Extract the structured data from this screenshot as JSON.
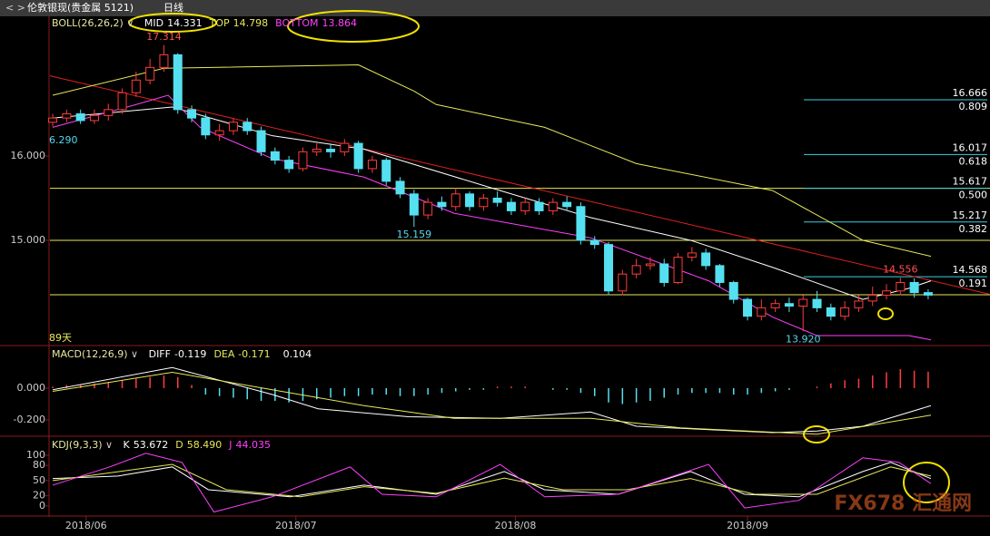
{
  "header": {
    "title": "伦敦银现(贵金属 5121)",
    "period": "日线"
  },
  "watermark": "FX678 汇通网",
  "chart_data": [
    {
      "type": "candlestick",
      "indicator": "BOLL(26,26,2)",
      "xlim": [
        -0.2,
        67.45
      ],
      "ylim": [
        13.763,
        17.656
      ],
      "yticks": [
        {
          "value": 16,
          "label": "16.000"
        },
        {
          "value": 15,
          "label": "15.000"
        }
      ],
      "readouts": [
        {
          "name": "MID",
          "value": 14.331,
          "color": "#ffffff",
          "x": [
            0,
            8.6,
            15.8,
            22.4,
            32.2,
            38.7,
            45.9,
            51.8,
            58.3,
            61.6,
            63.2
          ],
          "values": [
            16.45,
            16.58,
            16.24,
            16.08,
            15.59,
            15.27,
            15.0,
            14.68,
            14.3,
            14.43,
            14.52
          ]
        },
        {
          "name": "TOP",
          "value": 14.798,
          "color": "#e8e85a",
          "x": [
            0,
            8,
            22,
            26,
            27.6,
            35.4,
            42,
            51.8,
            58.3,
            63.2
          ],
          "values": [
            16.72,
            17.04,
            17.08,
            16.77,
            16.61,
            16.34,
            15.91,
            15.59,
            15.0,
            14.81
          ]
        },
        {
          "name": "BOTTOM",
          "value": 13.864,
          "color": "#ff40ff",
          "x": [
            0,
            6,
            8.3,
            10.6,
            15.8,
            22.4,
            28.9,
            38.7,
            47.2,
            51.8,
            55,
            61.6,
            63.2
          ],
          "values": [
            16.34,
            16.61,
            16.72,
            16.34,
            15.97,
            15.75,
            15.32,
            15.03,
            14.52,
            14.09,
            13.87,
            13.87,
            13.82
          ]
        }
      ],
      "candles": [
        [
          16.4,
          16.45,
          16.5,
          16.35
        ],
        [
          16.45,
          16.5,
          16.55,
          16.4
        ],
        [
          16.5,
          16.42,
          16.55,
          16.38
        ],
        [
          16.42,
          16.48,
          16.55,
          16.38
        ],
        [
          16.48,
          16.55,
          16.62,
          16.42
        ],
        [
          16.55,
          16.75,
          16.8,
          16.5
        ],
        [
          16.75,
          16.9,
          17.0,
          16.7
        ],
        [
          16.9,
          17.05,
          17.15,
          16.85
        ],
        [
          17.05,
          17.2,
          17.314,
          17.0
        ],
        [
          17.2,
          16.55,
          17.22,
          16.5
        ],
        [
          16.55,
          16.45,
          16.6,
          16.4
        ],
        [
          16.45,
          16.25,
          16.5,
          16.2
        ],
        [
          16.25,
          16.3,
          16.38,
          16.18
        ],
        [
          16.3,
          16.4,
          16.45,
          16.25
        ],
        [
          16.4,
          16.3,
          16.45,
          16.25
        ],
        [
          16.3,
          16.05,
          16.35,
          16.0
        ],
        [
          16.05,
          15.95,
          16.1,
          15.9
        ],
        [
          15.95,
          15.85,
          16.0,
          15.8
        ],
        [
          15.85,
          16.05,
          16.1,
          15.82
        ],
        [
          16.05,
          16.08,
          16.15,
          16.0
        ],
        [
          16.08,
          16.05,
          16.15,
          15.98
        ],
        [
          16.05,
          16.15,
          16.2,
          16.0
        ],
        [
          16.15,
          15.85,
          16.18,
          15.8
        ],
        [
          15.85,
          15.95,
          16.0,
          15.8
        ],
        [
          15.95,
          15.7,
          15.98,
          15.65
        ],
        [
          15.7,
          15.55,
          15.75,
          15.5
        ],
        [
          15.55,
          15.3,
          15.6,
          15.159
        ],
        [
          15.3,
          15.45,
          15.5,
          15.25
        ],
        [
          15.45,
          15.4,
          15.52,
          15.35
        ],
        [
          15.4,
          15.55,
          15.62,
          15.35
        ],
        [
          15.55,
          15.4,
          15.58,
          15.35
        ],
        [
          15.4,
          15.5,
          15.55,
          15.35
        ],
        [
          15.5,
          15.45,
          15.58,
          15.4
        ],
        [
          15.45,
          15.35,
          15.5,
          15.3
        ],
        [
          15.35,
          15.45,
          15.5,
          15.3
        ],
        [
          15.45,
          15.35,
          15.5,
          15.3
        ],
        [
          15.35,
          15.45,
          15.5,
          15.3
        ],
        [
          15.45,
          15.4,
          15.52,
          15.35
        ],
        [
          15.4,
          15.0,
          15.45,
          14.95
        ],
        [
          15.0,
          14.95,
          15.05,
          14.9
        ],
        [
          14.95,
          14.4,
          14.98,
          14.35
        ],
        [
          14.4,
          14.6,
          14.65,
          14.35
        ],
        [
          14.6,
          14.7,
          14.78,
          14.55
        ],
        [
          14.7,
          14.72,
          14.8,
          14.65
        ],
        [
          14.72,
          14.5,
          14.78,
          14.45
        ],
        [
          14.5,
          14.8,
          14.85,
          14.48
        ],
        [
          14.8,
          14.85,
          14.92,
          14.75
        ],
        [
          14.85,
          14.7,
          14.9,
          14.65
        ],
        [
          14.7,
          14.5,
          14.72,
          14.45
        ],
        [
          14.5,
          14.3,
          14.52,
          14.25
        ],
        [
          14.3,
          14.1,
          14.32,
          14.05
        ],
        [
          14.1,
          14.2,
          14.3,
          14.05
        ],
        [
          14.2,
          14.25,
          14.3,
          14.15
        ],
        [
          14.25,
          14.22,
          14.32,
          14.15
        ],
        [
          14.22,
          14.3,
          14.35,
          13.92
        ],
        [
          14.3,
          14.2,
          14.4,
          14.15
        ],
        [
          14.2,
          14.1,
          14.25,
          14.05
        ],
        [
          14.1,
          14.2,
          14.28,
          14.05
        ],
        [
          14.2,
          14.28,
          14.35,
          14.15
        ],
        [
          14.28,
          14.35,
          14.45,
          14.22
        ],
        [
          14.35,
          14.4,
          14.48,
          14.3
        ],
        [
          14.4,
          14.5,
          14.556,
          14.35
        ],
        [
          14.5,
          14.38,
          14.55,
          14.32
        ],
        [
          14.38,
          14.35,
          14.42,
          14.3
        ]
      ],
      "trendline": {
        "color": "#e02020",
        "x": [
          -0.2,
          67.45
        ],
        "values": [
          16.95,
          14.36
        ]
      },
      "hlines": {
        "color": "#e8e85a",
        "values": [
          15.617,
          15.0,
          14.355
        ]
      },
      "fib_levels": [
        {
          "value": 16.666,
          "ratio": 0.809,
          "ratio_label": "0.809"
        },
        {
          "value": 16.017,
          "ratio": 0.618,
          "ratio_label": "0.618"
        },
        {
          "value": 15.617,
          "ratio": 0.5,
          "ratio_label": "0.500"
        },
        {
          "value": 15.217,
          "ratio": 0.382,
          "ratio_label": "0.382"
        },
        {
          "value": 14.568,
          "ratio": 0.191,
          "ratio_label": "0.191"
        }
      ],
      "annotations": [
        {
          "x": 8,
          "value": 17.314,
          "color": "#ff5050",
          "pos": "above"
        },
        {
          "x": 26,
          "value": 15.159,
          "color": "#54d8f0",
          "pos": "below"
        },
        {
          "x": 54,
          "value": 13.92,
          "label": "13.920",
          "color": "#54d8f0",
          "pos": "below"
        },
        {
          "x": 61,
          "value": 14.556,
          "color": "#ff5050",
          "pos": "above"
        }
      ],
      "left_label": "6.290",
      "day_count": "89天"
    },
    {
      "type": "macd",
      "indicator": "MACD(12,26,9)",
      "xlim": [
        -0.2,
        67.45
      ],
      "ylim": [
        -0.297,
        0.257
      ],
      "yticks": [
        {
          "value": 0,
          "label": "0.000"
        },
        {
          "value": -0.2,
          "label": "-0.200"
        }
      ],
      "readouts": [
        {
          "name": "DIFF",
          "value": -0.119,
          "color": "#ffffff",
          "x": [
            0,
            8.6,
            15.8,
            19.1,
            25.6,
            32.2,
            38.7,
            42,
            51.8,
            55,
            58.3,
            63.2
          ],
          "values": [
            -0.01,
            0.13,
            -0.04,
            -0.13,
            -0.18,
            -0.19,
            -0.15,
            -0.24,
            -0.28,
            -0.27,
            -0.24,
            -0.11
          ]
        },
        {
          "name": "DEA",
          "value": -0.171,
          "color": "#e8e85a",
          "x": [
            0,
            8.6,
            15.8,
            22.4,
            28.9,
            38.7,
            45.2,
            55,
            63.2
          ],
          "values": [
            -0.02,
            0.1,
            -0.01,
            -0.11,
            -0.19,
            -0.19,
            -0.25,
            -0.29,
            -0.17
          ]
        }
      ],
      "bar_value": 0.104,
      "histogram": [
        0.01,
        0.02,
        0.02,
        0.03,
        0.04,
        0.05,
        0.06,
        0.07,
        0.08,
        0.07,
        0.02,
        -0.04,
        -0.05,
        -0.06,
        -0.07,
        -0.08,
        -0.08,
        -0.09,
        -0.08,
        -0.07,
        -0.06,
        -0.05,
        -0.05,
        -0.04,
        -0.04,
        -0.05,
        -0.05,
        -0.04,
        -0.03,
        -0.02,
        -0.01,
        -0.01,
        0.01,
        0.01,
        0.01,
        0,
        -0.01,
        -0.01,
        -0.03,
        -0.05,
        -0.09,
        -0.1,
        -0.09,
        -0.08,
        -0.06,
        -0.04,
        -0.03,
        -0.03,
        -0.03,
        -0.04,
        -0.04,
        -0.03,
        -0.02,
        -0.01,
        0,
        0.01,
        0.03,
        0.05,
        0.06,
        0.08,
        0.1,
        0.12,
        0.11,
        0.104
      ]
    },
    {
      "type": "kdj",
      "indicator": "KDJ(9,3,3)",
      "xlim": [
        -0.2,
        67.45
      ],
      "ylim": [
        -20,
        134
      ],
      "yticks": [
        100,
        80,
        50,
        20,
        0
      ],
      "xticks": [
        {
          "value": 2.4,
          "label": "2018/06"
        },
        {
          "value": 17.5,
          "label": "2018/07"
        },
        {
          "value": 33.3,
          "label": "2018/08"
        },
        {
          "value": 50,
          "label": "2018/09"
        }
      ],
      "readouts": [
        {
          "name": "K",
          "value": 53.672,
          "color": "#ffffff",
          "x": [
            0,
            4.7,
            8.6,
            11.2,
            17.1,
            22.4,
            27.6,
            32.5,
            35.4,
            40.7,
            45.9,
            49.8,
            53.7,
            58.3,
            60.3,
            63.2
          ],
          "values": [
            54,
            59,
            77,
            32,
            18,
            41,
            23,
            68,
            32,
            23,
            68,
            23,
            18,
            68,
            86,
            54
          ]
        },
        {
          "name": "D",
          "value": 58.49,
          "label": "58.490",
          "color": "#e8e85a",
          "x": [
            0,
            8.6,
            12.5,
            17.8,
            22.4,
            27.6,
            32.5,
            36.7,
            41.3,
            45.9,
            50.5,
            55,
            60.3,
            63.2
          ],
          "values": [
            50,
            82,
            32,
            18,
            38,
            25,
            55,
            32,
            32,
            54,
            23,
            23,
            77,
            59
          ]
        },
        {
          "name": "J",
          "value": 44.035,
          "color": "#ff40ff",
          "x": [
            0,
            4.1,
            6.7,
            9.3,
            11.6,
            15.8,
            21.4,
            23.7,
            27.6,
            32.2,
            35.4,
            40.7,
            47.2,
            49.8,
            53.7,
            58.3,
            60.9,
            63.2
          ],
          "values": [
            41,
            77,
            104,
            86,
            -12,
            18,
            77,
            23,
            18,
            82,
            18,
            23,
            82,
            -4,
            11,
            95,
            86,
            44
          ]
        }
      ]
    }
  ]
}
